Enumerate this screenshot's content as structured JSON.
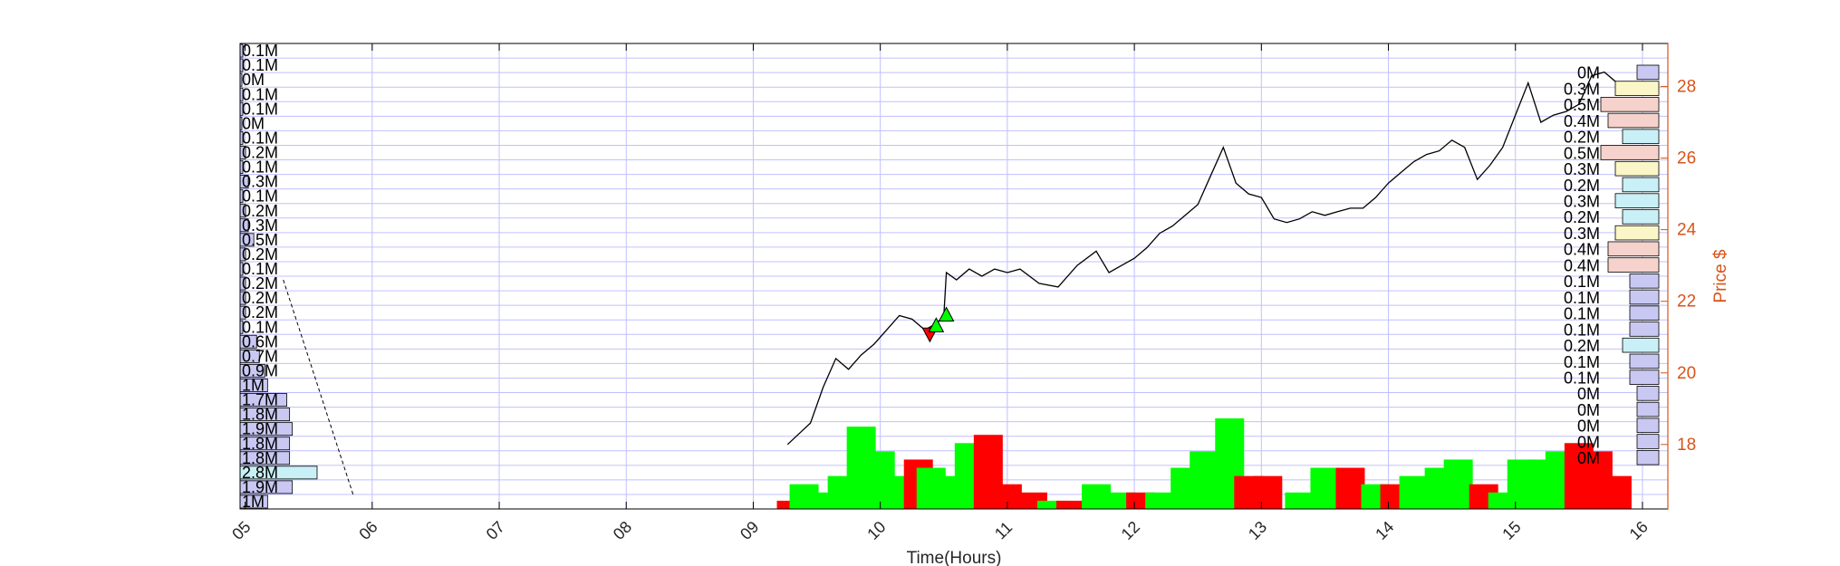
{
  "chart_data": {
    "type": "bar",
    "xlabel": "Time(Hours)",
    "ylabel_right": "Price $",
    "x_tick_labels": [
      "05",
      "06",
      "07",
      "08",
      "09",
      "10",
      "11",
      "12",
      "13",
      "14",
      "15",
      "16"
    ],
    "x_range_hours": [
      4.96,
      16.2
    ],
    "y_right_ticks": [
      18,
      20,
      22,
      24,
      26,
      28
    ],
    "y_right_range": [
      16.2,
      29.2
    ],
    "grid": true,
    "colors": {
      "axis": "#000000",
      "grid": "#c0c0ff",
      "price_axis": "#d95319",
      "price_line": "#000000",
      "buy_volume": "#00ff00",
      "sell_volume": "#ff0000",
      "profile_blue": "#c8c8f2",
      "profile_cyan": "#c8f0f6",
      "profile_yellow": "#fbf6c8",
      "profile_pink": "#f6d2cc"
    },
    "left_volume_profile": {
      "labels": [
        "0.1M",
        "0.1M",
        "0M",
        "0.1M",
        "0.1M",
        "0M",
        "0.1M",
        "0.2M",
        "0.1M",
        "0.3M",
        "0.1M",
        "0.2M",
        "0.3M",
        "0.5M",
        "0.2M",
        "0.1M",
        "0.2M",
        "0.2M",
        "0.2M",
        "0.1M",
        "0.6M",
        "0.7M",
        "0.9M",
        "1M",
        "1.7M",
        "1.8M",
        "1.9M",
        "1.8M",
        "1.8M",
        "2.8M",
        "1.9M",
        "1M"
      ],
      "values": [
        0.1,
        0.1,
        0.0,
        0.1,
        0.1,
        0.0,
        0.1,
        0.2,
        0.1,
        0.3,
        0.1,
        0.2,
        0.3,
        0.5,
        0.2,
        0.1,
        0.2,
        0.2,
        0.2,
        0.1,
        0.6,
        0.7,
        0.9,
        1.0,
        1.7,
        1.8,
        1.9,
        1.8,
        1.8,
        2.8,
        1.9,
        1.0
      ]
    },
    "right_volume_profile": {
      "labels": [
        "0M",
        "0.3M",
        "0.5M",
        "0.4M",
        "0.2M",
        "0.5M",
        "0.3M",
        "0.2M",
        "0.3M",
        "0.2M",
        "0.3M",
        "0.4M",
        "0.4M",
        "0.1M",
        "0.1M",
        "0.1M",
        "0.1M",
        "0.2M",
        "0.1M",
        "0.1M",
        "0M",
        "0M",
        "0M",
        "0M",
        "0M"
      ],
      "values": [
        0.0,
        0.3,
        0.5,
        0.4,
        0.2,
        0.5,
        0.3,
        0.2,
        0.3,
        0.2,
        0.3,
        0.4,
        0.4,
        0.1,
        0.1,
        0.1,
        0.1,
        0.2,
        0.1,
        0.1,
        0.0,
        0.0,
        0.0,
        0.0,
        0.0
      ],
      "bar_colors": [
        "blue",
        "yellow",
        "pink",
        "pink",
        "cyan",
        "pink",
        "yellow",
        "cyan",
        "cyan",
        "cyan",
        "yellow",
        "pink",
        "pink",
        "blue",
        "blue",
        "blue",
        "blue",
        "cyan",
        "blue",
        "blue",
        "blue",
        "blue",
        "blue",
        "blue",
        "blue"
      ]
    },
    "price_series": {
      "name": "",
      "time_hours": [
        5.3,
        5.85,
        9.27,
        9.45,
        9.55,
        9.65,
        9.75,
        9.85,
        9.95,
        10.05,
        10.15,
        10.25,
        10.35,
        10.45,
        10.5,
        10.52,
        10.6,
        10.7,
        10.8,
        10.9,
        11.0,
        11.1,
        11.25,
        11.4,
        11.55,
        11.7,
        11.8,
        11.9,
        12.0,
        12.1,
        12.2,
        12.3,
        12.4,
        12.5,
        12.6,
        12.7,
        12.8,
        12.9,
        13.0,
        13.1,
        13.2,
        13.3,
        13.4,
        13.5,
        13.6,
        13.7,
        13.8,
        13.9,
        14.0,
        14.1,
        14.2,
        14.3,
        14.4,
        14.5,
        14.6,
        14.7,
        14.8,
        14.9,
        15.0,
        15.1,
        15.2,
        15.3,
        15.4,
        15.5,
        15.6,
        15.7,
        15.8,
        15.95
      ],
      "price": [
        22.6,
        16.6,
        18.0,
        18.6,
        19.6,
        20.4,
        20.1,
        20.5,
        20.8,
        21.2,
        21.6,
        21.5,
        21.2,
        21.4,
        21.6,
        22.8,
        22.6,
        22.9,
        22.7,
        22.9,
        22.8,
        22.9,
        22.5,
        22.4,
        23.0,
        23.4,
        22.8,
        23.0,
        23.2,
        23.5,
        23.9,
        24.1,
        24.4,
        24.7,
        25.5,
        26.3,
        25.3,
        25.0,
        24.9,
        24.3,
        24.2,
        24.3,
        24.5,
        24.4,
        24.5,
        24.6,
        24.6,
        24.9,
        25.3,
        25.6,
        25.9,
        26.1,
        26.2,
        26.5,
        26.3,
        25.4,
        25.8,
        26.3,
        27.2,
        28.1,
        27.0,
        27.2,
        27.3,
        27.5,
        28.3,
        28.4,
        28.1,
        27.9
      ]
    },
    "volume_bars": {
      "time_hours": [
        9.3,
        9.4,
        9.6,
        9.7,
        9.85,
        10.0,
        10.15,
        10.3,
        10.4,
        10.55,
        10.7,
        10.85,
        11.0,
        11.2,
        11.35,
        11.5,
        11.7,
        11.9,
        12.05,
        12.2,
        12.4,
        12.55,
        12.75,
        12.9,
        13.05,
        13.3,
        13.5,
        13.7,
        13.9,
        14.05,
        14.2,
        14.4,
        14.55,
        14.75,
        14.9,
        15.05,
        15.2,
        15.35,
        15.5,
        15.65,
        15.8
      ],
      "values": [
        0.1,
        0.3,
        0.2,
        0.4,
        1.0,
        0.7,
        0.4,
        0.6,
        0.5,
        0.4,
        0.8,
        0.9,
        0.3,
        0.2,
        0.1,
        0.1,
        0.3,
        0.2,
        0.2,
        0.2,
        0.5,
        0.7,
        1.1,
        0.4,
        0.4,
        0.2,
        0.5,
        0.5,
        0.3,
        0.3,
        0.4,
        0.5,
        0.6,
        0.3,
        0.2,
        0.6,
        0.6,
        0.7,
        0.8,
        0.7,
        0.4
      ],
      "sides": [
        "sell",
        "buy",
        "buy",
        "buy",
        "buy",
        "buy",
        "buy",
        "sell",
        "buy",
        "buy",
        "buy",
        "sell",
        "sell",
        "sell",
        "buy",
        "sell",
        "buy",
        "buy",
        "sell",
        "buy",
        "buy",
        "buy",
        "buy",
        "sell",
        "sell",
        "buy",
        "buy",
        "sell",
        "buy",
        "sell",
        "buy",
        "buy",
        "buy",
        "sell",
        "buy",
        "buy",
        "buy",
        "buy",
        "sell",
        "sell",
        "sell"
      ]
    },
    "trade_markers": [
      {
        "time_hours": 10.39,
        "price": 21.1,
        "side": "sell"
      },
      {
        "time_hours": 10.44,
        "price": 21.3,
        "side": "buy"
      },
      {
        "time_hours": 10.52,
        "price": 21.6,
        "side": "buy"
      }
    ]
  }
}
